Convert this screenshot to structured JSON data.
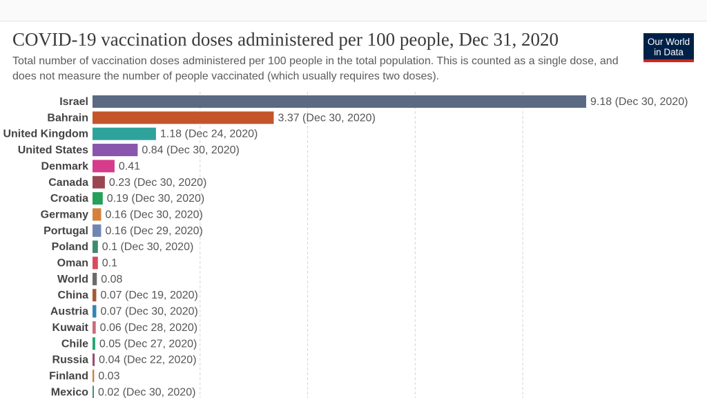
{
  "chart_data": {
    "type": "bar",
    "orientation": "horizontal",
    "title": "COVID-19 vaccination doses administered per 100 people, Dec 31, 2020",
    "subtitle": "Total number of vaccination doses administered per 100 people in the total population. This is counted as a single dose, and does not measure the number of people vaccinated (which usually requires two doses).",
    "grid": true,
    "categories": [
      "Israel",
      "Bahrain",
      "United Kingdom",
      "United States",
      "Denmark",
      "Canada",
      "Croatia",
      "Germany",
      "Portugal",
      "Poland",
      "Oman",
      "World",
      "China",
      "Austria",
      "Kuwait",
      "Chile",
      "Russia",
      "Finland",
      "Mexico"
    ],
    "values": [
      9.18,
      3.37,
      1.18,
      0.84,
      0.41,
      0.23,
      0.19,
      0.16,
      0.16,
      0.1,
      0.1,
      0.08,
      0.07,
      0.07,
      0.06,
      0.05,
      0.04,
      0.03,
      0.02
    ],
    "value_labels": [
      "9.18 (Dec 30, 2020)",
      "3.37 (Dec 30, 2020)",
      "1.18 (Dec 24, 2020)",
      "0.84 (Dec 30, 2020)",
      "0.41",
      "0.23 (Dec 30, 2020)",
      "0.19 (Dec 30, 2020)",
      "0.16 (Dec 30, 2020)",
      "0.16 (Dec 29, 2020)",
      "0.1 (Dec 30, 2020)",
      "0.1",
      "0.08",
      "0.07 (Dec 19, 2020)",
      "0.07 (Dec 30, 2020)",
      "0.06 (Dec 28, 2020)",
      "0.05 (Dec 27, 2020)",
      "0.04 (Dec 22, 2020)",
      "0.03",
      "0.02 (Dec 30, 2020)"
    ],
    "colors": [
      "#5a6a82",
      "#c4552b",
      "#2ea39b",
      "#8a56ad",
      "#d63c8a",
      "#9a4650",
      "#24a05a",
      "#d4813c",
      "#6f86b5",
      "#3d8c6e",
      "#d94a5c",
      "#6b6b6b",
      "#a55a33",
      "#2f88b0",
      "#cc6a7a",
      "#28a36f",
      "#9a4b73",
      "#c8823a",
      "#3f8f7a"
    ],
    "gridlines": [
      2,
      4,
      6,
      8
    ],
    "xlim": [
      0,
      9.18
    ]
  },
  "logo": {
    "line1": "Our World",
    "line2": "in Data"
  }
}
